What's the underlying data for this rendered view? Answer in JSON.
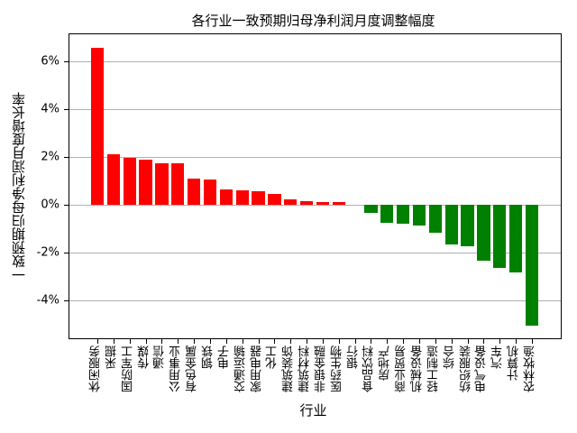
{
  "chart_data": {
    "type": "bar",
    "title": "各行业一致预期归母净利润月度调整幅度",
    "xlabel": "行业",
    "ylabel": "一致预期归母净利润月度增长率",
    "ylim": [
      -5.61,
      7.18
    ],
    "yticks": [
      -4,
      -2,
      0,
      2,
      4,
      6
    ],
    "ytick_labels": [
      "-4%",
      "-2%",
      "0%",
      "2%",
      "4%",
      "6%"
    ],
    "grid": "y",
    "legend": null,
    "value_unit": "%",
    "positive_color": "#ff0000",
    "negative_color": "#008000",
    "categories": [
      "休闲服务",
      "采掘",
      "国防军工",
      "传媒",
      "通信",
      "公用事业",
      "有色金属",
      "钢铁",
      "电子",
      "交通运输",
      "家用电器",
      "化工",
      "建筑装饰",
      "建筑材料",
      "非银金融",
      "医药生物",
      "银行",
      "食品饮料",
      "房地产",
      "商业贸易",
      "机械设备",
      "轻工制造",
      "综合",
      "纺织服装",
      "电气设备",
      "汽车",
      "计算机",
      "农林牧渔"
    ],
    "values": [
      6.59,
      2.12,
      1.99,
      1.91,
      1.75,
      1.75,
      1.1,
      1.07,
      0.65,
      0.62,
      0.58,
      0.46,
      0.24,
      0.16,
      0.12,
      0.12,
      0.0,
      -0.32,
      -0.73,
      -0.77,
      -0.84,
      -1.15,
      -1.64,
      -1.71,
      -2.32,
      -2.62,
      -2.81,
      -5.03
    ]
  }
}
